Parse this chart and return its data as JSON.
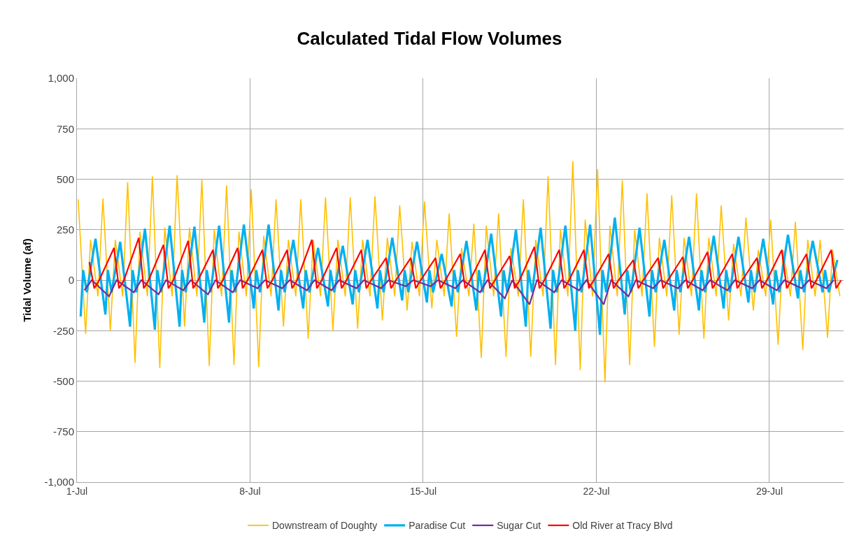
{
  "chart_data": {
    "type": "line",
    "title": "Calculated Tidal Flow Volumes",
    "ylabel": "Tidal Volume (af)",
    "xlim": [
      "--07-01",
      "--08-01"
    ],
    "xticks": [
      {
        "value": "--07-01",
        "label": "1-Jul"
      },
      {
        "value": "--07-08",
        "label": "8-Jul"
      },
      {
        "value": "--07-15",
        "label": "15-Jul"
      },
      {
        "value": "--07-22",
        "label": "22-Jul"
      },
      {
        "value": "--07-29",
        "label": "29-Jul"
      }
    ],
    "ylim": [
      -1000,
      1000
    ],
    "yticks": [
      {
        "value": -1000,
        "label": "-1,000"
      },
      -750,
      -500,
      -250,
      0,
      250,
      500,
      750,
      {
        "value": 1000,
        "label": "1,000"
      }
    ],
    "grid": true,
    "legend": "bottom",
    "marker": "none",
    "line_style": "solid",
    "series": [
      {
        "name": "Downstream of Doughty",
        "color": "#ffc000",
        "x": [
          "--07-01T01:12",
          "--07-01T08:24",
          "--07-01T13:12",
          "--07-01T20:24",
          "--07-02T01:12",
          "--07-02T08:24",
          "--07-02T13:12",
          "--07-02T20:24",
          "--07-03T01:12",
          "--07-03T08:24",
          "--07-03T13:12",
          "--07-03T20:24",
          "--07-04T01:12",
          "--07-04T08:24",
          "--07-04T13:12",
          "--07-04T20:24",
          "--07-05T01:12",
          "--07-05T08:24",
          "--07-05T13:12",
          "--07-05T20:24",
          "--07-06T01:12",
          "--07-06T08:24",
          "--07-06T13:12",
          "--07-06T20:24",
          "--07-07T01:12",
          "--07-07T08:24",
          "--07-07T13:12",
          "--07-07T20:24",
          "--07-08T01:12",
          "--07-08T08:24",
          "--07-08T13:12",
          "--07-08T20:24",
          "--07-09T01:12",
          "--07-09T08:24",
          "--07-09T13:12",
          "--07-09T20:24",
          "--07-10T01:12",
          "--07-10T08:24",
          "--07-10T13:12",
          "--07-10T20:24",
          "--07-11T01:12",
          "--07-11T08:24",
          "--07-11T13:12",
          "--07-11T20:24",
          "--07-12T01:12",
          "--07-12T08:24",
          "--07-12T13:12",
          "--07-12T20:24",
          "--07-13T01:12",
          "--07-13T08:24",
          "--07-13T13:12",
          "--07-13T20:24",
          "--07-14T01:12",
          "--07-14T08:24",
          "--07-14T13:12",
          "--07-14T20:24",
          "--07-15T01:12",
          "--07-15T08:24",
          "--07-15T13:12",
          "--07-15T20:24",
          "--07-16T01:12",
          "--07-16T08:24",
          "--07-16T13:12",
          "--07-16T20:24",
          "--07-17T01:12",
          "--07-17T08:24",
          "--07-17T13:12",
          "--07-17T20:24",
          "--07-18T01:12",
          "--07-18T08:24",
          "--07-18T13:12",
          "--07-18T20:24",
          "--07-19T01:12",
          "--07-19T08:24",
          "--07-19T13:12",
          "--07-19T20:24",
          "--07-20T01:12",
          "--07-20T08:24",
          "--07-20T13:12",
          "--07-20T20:24",
          "--07-21T01:12",
          "--07-21T08:24",
          "--07-21T13:12",
          "--07-21T20:24",
          "--07-22T01:12",
          "--07-22T08:24",
          "--07-22T13:12",
          "--07-22T20:24",
          "--07-23T01:12",
          "--07-23T08:24",
          "--07-23T13:12",
          "--07-23T20:24",
          "--07-24T01:12",
          "--07-24T08:24",
          "--07-24T13:12",
          "--07-24T20:24",
          "--07-25T01:12",
          "--07-25T08:24",
          "--07-25T13:12",
          "--07-25T20:24",
          "--07-26T01:12",
          "--07-26T08:24",
          "--07-26T13:12",
          "--07-26T20:24",
          "--07-27T01:12",
          "--07-27T08:24",
          "--07-27T13:12",
          "--07-27T20:24",
          "--07-28T01:12",
          "--07-28T08:24",
          "--07-28T13:12",
          "--07-28T20:24",
          "--07-29T01:12",
          "--07-29T08:24",
          "--07-29T13:12",
          "--07-29T20:24",
          "--07-30T01:12",
          "--07-30T08:24",
          "--07-30T13:12",
          "--07-30T20:24",
          "--07-31T01:12",
          "--07-31T08:24",
          "--07-31T13:12",
          "--07-31T20:24"
        ],
        "values": [
          400,
          -265,
          200,
          -80,
          405,
          -250,
          200,
          -80,
          485,
          -410,
          240,
          -80,
          515,
          -435,
          260,
          -80,
          520,
          -230,
          260,
          -80,
          500,
          -425,
          250,
          -80,
          470,
          -420,
          240,
          -80,
          450,
          -430,
          220,
          -80,
          400,
          -230,
          200,
          -80,
          400,
          -290,
          200,
          -80,
          410,
          -250,
          200,
          -80,
          410,
          -240,
          200,
          -80,
          415,
          -200,
          210,
          -80,
          370,
          -150,
          190,
          -80,
          390,
          -140,
          200,
          -80,
          330,
          -280,
          160,
          -80,
          280,
          -385,
          270,
          -80,
          330,
          -380,
          160,
          -80,
          400,
          -380,
          200,
          -80,
          515,
          -420,
          250,
          -80,
          590,
          -445,
          300,
          -80,
          550,
          -505,
          270,
          -80,
          495,
          -420,
          250,
          -80,
          430,
          -330,
          210,
          -80,
          420,
          -270,
          210,
          -80,
          430,
          -290,
          210,
          -80,
          370,
          -200,
          180,
          -80,
          310,
          -150,
          150,
          -80,
          300,
          -320,
          150,
          -80,
          290,
          -345,
          200,
          -80,
          200,
          -285,
          150,
          -80
        ]
      },
      {
        "name": "Paradise Cut",
        "color": "#00b0f0",
        "x": [
          "--07-01T03:36",
          "--07-01T06:00",
          "--07-01T09:36",
          "--07-01T18:00",
          "--07-02T03:36",
          "--07-02T06:00",
          "--07-02T09:36",
          "--07-02T18:00",
          "--07-03T03:36",
          "--07-03T06:00",
          "--07-03T09:36",
          "--07-03T18:00",
          "--07-04T03:36",
          "--07-04T06:00",
          "--07-04T09:36",
          "--07-04T18:00",
          "--07-05T03:36",
          "--07-05T06:00",
          "--07-05T09:36",
          "--07-05T18:00",
          "--07-06T03:36",
          "--07-06T06:00",
          "--07-06T09:36",
          "--07-06T18:00",
          "--07-07T03:36",
          "--07-07T06:00",
          "--07-07T09:36",
          "--07-07T18:00",
          "--07-08T03:36",
          "--07-08T06:00",
          "--07-08T09:36",
          "--07-08T18:00",
          "--07-09T03:36",
          "--07-09T06:00",
          "--07-09T09:36",
          "--07-09T18:00",
          "--07-10T03:36",
          "--07-10T06:00",
          "--07-10T09:36",
          "--07-10T18:00",
          "--07-11T03:36",
          "--07-11T06:00",
          "--07-11T09:36",
          "--07-11T18:00",
          "--07-12T03:36",
          "--07-12T06:00",
          "--07-12T09:36",
          "--07-12T18:00",
          "--07-13T03:36",
          "--07-13T06:00",
          "--07-13T09:36",
          "--07-13T18:00",
          "--07-14T03:36",
          "--07-14T06:00",
          "--07-14T09:36",
          "--07-14T18:00",
          "--07-15T03:36",
          "--07-15T06:00",
          "--07-15T09:36",
          "--07-15T18:00",
          "--07-16T03:36",
          "--07-16T06:00",
          "--07-16T09:36",
          "--07-16T18:00",
          "--07-17T03:36",
          "--07-17T06:00",
          "--07-17T09:36",
          "--07-17T18:00",
          "--07-18T03:36",
          "--07-18T06:00",
          "--07-18T09:36",
          "--07-18T18:00",
          "--07-19T03:36",
          "--07-19T06:00",
          "--07-19T09:36",
          "--07-19T18:00",
          "--07-20T03:36",
          "--07-20T06:00",
          "--07-20T09:36",
          "--07-20T18:00",
          "--07-21T03:36",
          "--07-21T06:00",
          "--07-21T09:36",
          "--07-21T18:00",
          "--07-22T03:36",
          "--07-22T06:00",
          "--07-22T09:36",
          "--07-22T18:00",
          "--07-23T03:36",
          "--07-23T06:00",
          "--07-23T09:36",
          "--07-23T18:00",
          "--07-24T03:36",
          "--07-24T06:00",
          "--07-24T09:36",
          "--07-24T18:00",
          "--07-25T03:36",
          "--07-25T06:00",
          "--07-25T09:36",
          "--07-25T18:00",
          "--07-26T03:36",
          "--07-26T06:00",
          "--07-26T09:36",
          "--07-26T18:00",
          "--07-27T03:36",
          "--07-27T06:00",
          "--07-27T09:36",
          "--07-27T18:00",
          "--07-28T03:36",
          "--07-28T06:00",
          "--07-28T09:36",
          "--07-28T18:00",
          "--07-29T03:36",
          "--07-29T06:00",
          "--07-29T09:36",
          "--07-29T18:00",
          "--07-30T03:36",
          "--07-30T06:00",
          "--07-30T09:36",
          "--07-30T18:00",
          "--07-31T03:36",
          "--07-31T06:00",
          "--07-31T09:36",
          "--07-31T18:00"
        ],
        "values": [
          -180,
          50,
          -60,
          205,
          -170,
          50,
          -60,
          190,
          -230,
          50,
          -60,
          255,
          -245,
          50,
          -60,
          270,
          -230,
          50,
          -60,
          265,
          -210,
          50,
          -60,
          270,
          -210,
          50,
          -60,
          275,
          -140,
          50,
          -60,
          275,
          -150,
          50,
          -60,
          200,
          -140,
          50,
          -60,
          160,
          -130,
          50,
          -60,
          170,
          -120,
          50,
          -60,
          200,
          -140,
          50,
          -60,
          210,
          -100,
          50,
          -60,
          190,
          -110,
          50,
          -60,
          130,
          -130,
          50,
          -60,
          195,
          -150,
          50,
          -60,
          230,
          -180,
          50,
          -60,
          250,
          -230,
          50,
          -60,
          260,
          -240,
          50,
          -60,
          270,
          -250,
          50,
          -60,
          275,
          -270,
          50,
          -60,
          310,
          -170,
          50,
          -60,
          260,
          -180,
          50,
          -60,
          200,
          -150,
          50,
          -60,
          215,
          -150,
          50,
          -60,
          220,
          -140,
          50,
          -60,
          215,
          -110,
          50,
          -60,
          205,
          -120,
          50,
          -60,
          225,
          -90,
          50,
          -60,
          195,
          -60,
          50,
          -60,
          100
        ]
      },
      {
        "name": "Sugar Cut",
        "color": "#7030a0",
        "x": [
          "--07-01T07:12",
          "--07-01T14:24",
          "--07-02T07:12",
          "--07-02T14:24",
          "--07-03T07:12",
          "--07-03T14:24",
          "--07-04T07:12",
          "--07-04T14:24",
          "--07-05T07:12",
          "--07-05T14:24",
          "--07-06T07:12",
          "--07-06T14:24",
          "--07-07T07:12",
          "--07-07T14:24",
          "--07-08T07:12",
          "--07-08T14:24",
          "--07-09T07:12",
          "--07-09T14:24",
          "--07-10T07:12",
          "--07-10T14:24",
          "--07-11T07:12",
          "--07-11T14:24",
          "--07-12T07:12",
          "--07-12T14:24",
          "--07-13T07:12",
          "--07-13T14:24",
          "--07-14T07:12",
          "--07-14T14:24",
          "--07-15T07:12",
          "--07-15T14:24",
          "--07-16T07:12",
          "--07-16T14:24",
          "--07-17T07:12",
          "--07-17T14:24",
          "--07-18T07:12",
          "--07-18T14:24",
          "--07-19T07:12",
          "--07-19T14:24",
          "--07-20T07:12",
          "--07-20T14:24",
          "--07-21T07:12",
          "--07-21T14:24",
          "--07-22T07:12",
          "--07-22T14:24",
          "--07-23T07:12",
          "--07-23T14:24",
          "--07-24T07:12",
          "--07-24T14:24",
          "--07-25T07:12",
          "--07-25T14:24",
          "--07-26T07:12",
          "--07-26T14:24",
          "--07-27T07:12",
          "--07-27T14:24",
          "--07-28T07:12",
          "--07-28T14:24",
          "--07-29T07:12",
          "--07-29T14:24",
          "--07-30T07:12",
          "--07-30T14:24",
          "--07-31T07:12",
          "--07-31T14:24"
        ],
        "values": [
          -50,
          0,
          -80,
          0,
          -60,
          0,
          -70,
          0,
          -50,
          0,
          -70,
          0,
          -60,
          0,
          -40,
          0,
          -40,
          0,
          -50,
          0,
          -50,
          0,
          -40,
          0,
          -40,
          0,
          -30,
          0,
          -30,
          0,
          -40,
          0,
          -60,
          0,
          -90,
          0,
          -120,
          0,
          -60,
          0,
          -50,
          0,
          -120,
          0,
          -80,
          0,
          -40,
          0,
          -40,
          0,
          -50,
          0,
          -50,
          0,
          -40,
          0,
          -50,
          0,
          -40,
          0,
          -40,
          0
        ]
      },
      {
        "name": "Old River at Tracy Blvd",
        "color": "#ff0000",
        "x": [
          "--07-01T12:00",
          "--07-01T16:48",
          "--07-01T21:36",
          "--07-02T12:00",
          "--07-02T16:48",
          "--07-02T21:36",
          "--07-03T12:00",
          "--07-03T16:48",
          "--07-03T21:36",
          "--07-04T12:00",
          "--07-04T16:48",
          "--07-04T21:36",
          "--07-05T12:00",
          "--07-05T16:48",
          "--07-05T21:36",
          "--07-06T12:00",
          "--07-06T16:48",
          "--07-06T21:36",
          "--07-07T12:00",
          "--07-07T16:48",
          "--07-07T21:36",
          "--07-08T12:00",
          "--07-08T16:48",
          "--07-08T21:36",
          "--07-09T12:00",
          "--07-09T16:48",
          "--07-09T21:36",
          "--07-10T12:00",
          "--07-10T16:48",
          "--07-10T21:36",
          "--07-11T12:00",
          "--07-11T16:48",
          "--07-11T21:36",
          "--07-12T12:00",
          "--07-12T16:48",
          "--07-12T21:36",
          "--07-13T12:00",
          "--07-13T16:48",
          "--07-13T21:36",
          "--07-14T12:00",
          "--07-14T16:48",
          "--07-14T21:36",
          "--07-15T12:00",
          "--07-15T16:48",
          "--07-15T21:36",
          "--07-16T12:00",
          "--07-16T16:48",
          "--07-16T21:36",
          "--07-17T12:00",
          "--07-17T16:48",
          "--07-17T21:36",
          "--07-18T12:00",
          "--07-18T16:48",
          "--07-18T21:36",
          "--07-19T12:00",
          "--07-19T16:48",
          "--07-19T21:36",
          "--07-20T12:00",
          "--07-20T16:48",
          "--07-20T21:36",
          "--07-21T12:00",
          "--07-21T16:48",
          "--07-21T21:36",
          "--07-22T12:00",
          "--07-22T16:48",
          "--07-22T21:36",
          "--07-23T12:00",
          "--07-23T16:48",
          "--07-23T21:36",
          "--07-24T12:00",
          "--07-24T16:48",
          "--07-24T21:36",
          "--07-25T12:00",
          "--07-25T16:48",
          "--07-25T21:36",
          "--07-26T12:00",
          "--07-26T16:48",
          "--07-26T21:36",
          "--07-27T12:00",
          "--07-27T16:48",
          "--07-27T21:36",
          "--07-28T12:00",
          "--07-28T16:48",
          "--07-28T21:36",
          "--07-29T12:00",
          "--07-29T16:48",
          "--07-29T21:36",
          "--07-30T12:00",
          "--07-30T16:48",
          "--07-30T21:36",
          "--07-31T12:00",
          "--07-31T16:48",
          "--07-31T21:36"
        ],
        "values": [
          90,
          -40,
          0,
          160,
          -40,
          0,
          210,
          -40,
          0,
          175,
          -40,
          0,
          195,
          -40,
          0,
          150,
          -40,
          0,
          160,
          -40,
          0,
          150,
          -40,
          0,
          150,
          -40,
          0,
          200,
          -40,
          0,
          160,
          -40,
          0,
          150,
          -40,
          0,
          110,
          -40,
          0,
          110,
          -40,
          0,
          110,
          -40,
          0,
          130,
          -40,
          0,
          150,
          -40,
          0,
          120,
          -40,
          0,
          165,
          -40,
          0,
          150,
          -40,
          0,
          150,
          -40,
          0,
          130,
          -40,
          0,
          100,
          -40,
          0,
          110,
          -40,
          0,
          115,
          -40,
          0,
          140,
          -40,
          0,
          130,
          -40,
          0,
          110,
          -40,
          0,
          150,
          -40,
          0,
          130,
          -40,
          0,
          150,
          -40,
          0
        ]
      }
    ]
  }
}
